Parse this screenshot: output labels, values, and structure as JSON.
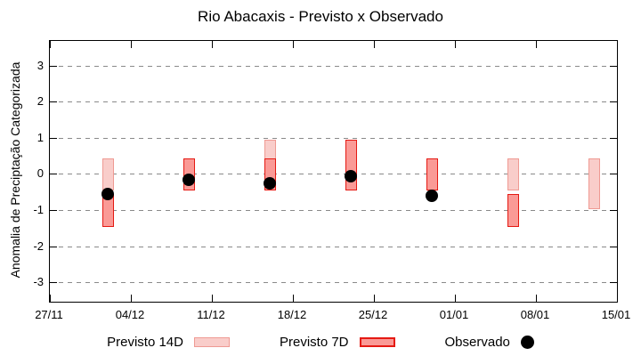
{
  "title": "Rio Abacaxis - Previsto x Observado",
  "axes": {
    "y_label": "Anomalia de Preciptação Categorizada",
    "y_ticks": [
      3,
      2,
      1,
      0,
      -1,
      -2,
      -3
    ],
    "x_ticks": [
      "27/11",
      "04/12",
      "11/12",
      "18/12",
      "25/12",
      "01/01",
      "08/01",
      "15/01"
    ]
  },
  "legend": {
    "items": [
      {
        "label": "Previsto 14D",
        "swatch_fill": "#f9cdca",
        "swatch_border": "#ef9a93"
      },
      {
        "label": "Previsto 7D",
        "swatch_fill": "#fa9a96",
        "swatch_border": "#e51a13"
      },
      {
        "label": "Observado",
        "marker_color": "#000000"
      }
    ]
  },
  "colors": {
    "frame": "#000000",
    "gridline": "#8a8a8a",
    "background": "#ffffff",
    "forecast14d_fill": "#f9cdca",
    "forecast14d_border": "#ef9a93",
    "forecast7d_fill": "#fa9a96",
    "forecast7d_border": "#e51a13",
    "observed": "#000000"
  },
  "chart_data": {
    "type": "bar",
    "subtype": "range-bars-with-scatter-overlay",
    "title": "Rio Abacaxis - Previsto x Observado",
    "xlabel": "",
    "ylabel": "Anomalia de Preciptação Categorizada",
    "ylim": [
      -3.52,
      3.69
    ],
    "grid": "horizontal-dashed",
    "legend_position": "bottom-center",
    "x_axis": {
      "tick_labels": [
        "27/11",
        "04/12",
        "11/12",
        "18/12",
        "25/12",
        "01/01",
        "08/01",
        "15/01"
      ],
      "span_days": 49
    },
    "series": [
      {
        "name": "Previsto 14D",
        "type": "range_bar",
        "fill": "#f9cdca",
        "border": "#ef9a93",
        "points": [
          {
            "x_day": 5,
            "x_date": "02/12",
            "low": -0.45,
            "high": 0.45
          },
          {
            "x_day": 19,
            "x_date": "16/12",
            "low": -0.45,
            "high": 0.95
          },
          {
            "x_day": 40,
            "x_date": "06/01",
            "low": -0.45,
            "high": 0.45
          },
          {
            "x_day": 47,
            "x_date": "13/01",
            "low": -0.95,
            "high": 0.45
          }
        ]
      },
      {
        "name": "Previsto 7D",
        "type": "range_bar",
        "fill": "#fa9a96",
        "border": "#e51a13",
        "points": [
          {
            "x_day": 5,
            "x_date": "02/12",
            "low": -1.45,
            "high": -0.55
          },
          {
            "x_day": 12,
            "x_date": "09/12",
            "low": -0.45,
            "high": 0.45
          },
          {
            "x_day": 19,
            "x_date": "16/12",
            "low": -0.45,
            "high": 0.45
          },
          {
            "x_day": 26,
            "x_date": "23/12",
            "low": -0.45,
            "high": 0.95
          },
          {
            "x_day": 33,
            "x_date": "30/12",
            "low": -0.45,
            "high": 0.45
          },
          {
            "x_day": 40,
            "x_date": "06/01",
            "low": -1.45,
            "high": -0.55
          }
        ]
      },
      {
        "name": "Observado",
        "type": "scatter",
        "color": "#000000",
        "points": [
          {
            "x_day": 5,
            "x_date": "02/12",
            "value": -0.55
          },
          {
            "x_day": 12,
            "x_date": "09/12",
            "value": -0.15
          },
          {
            "x_day": 19,
            "x_date": "16/12",
            "value": -0.25
          },
          {
            "x_day": 26,
            "x_date": "23/12",
            "value": -0.05
          },
          {
            "x_day": 33,
            "x_date": "30/12",
            "value": -0.6
          }
        ]
      }
    ]
  }
}
